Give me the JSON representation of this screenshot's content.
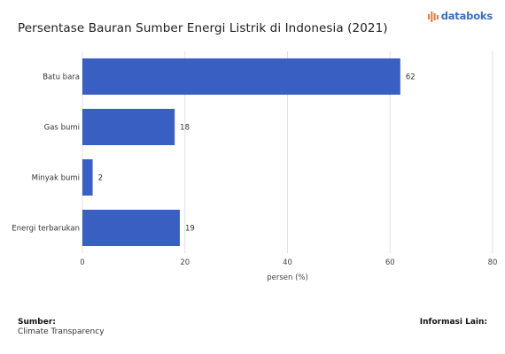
{
  "header": {
    "title": "Persentase Bauran Sumber Energi Listrik di Indonesia (2021)",
    "brand": "databoks",
    "brand_color": "#3a6fc4",
    "brand_icon": "databoks-logo-icon"
  },
  "chart_data": {
    "type": "bar",
    "orientation": "horizontal",
    "categories": [
      "Batu bara",
      "Gas bumi",
      "Minyak bumi",
      "Energi terbarukan"
    ],
    "values": [
      62,
      18,
      2,
      19
    ],
    "xlabel": "persen (%)",
    "xlim": [
      0,
      80
    ],
    "xticks": [
      0,
      20,
      40,
      60,
      80
    ],
    "bar_color": "#3a5fc3",
    "grid": true,
    "data_labels": true
  },
  "footer": {
    "source_label": "Sumber:",
    "source_value": "Climate Transparency",
    "info_label": "Informasi Lain:"
  }
}
